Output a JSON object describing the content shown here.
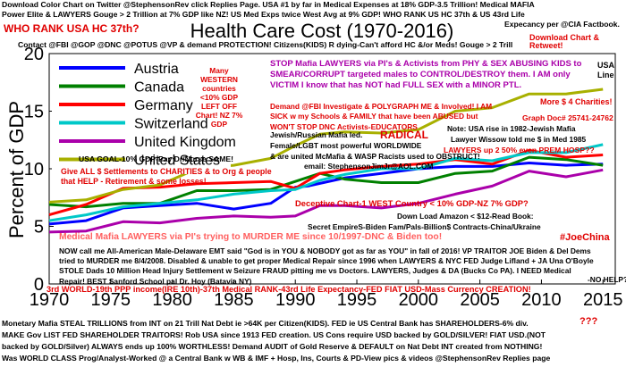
{
  "chart_data": {
    "type": "line",
    "title": "Health Care Cost (1970-2016)",
    "ylabel": "Percent of GDP",
    "xlabel": "",
    "xlim": [
      1970,
      2016
    ],
    "ylim": [
      0,
      20
    ],
    "xticks": [
      1970,
      1975,
      1980,
      1985,
      1990,
      1995,
      2000,
      2005,
      2010,
      2015
    ],
    "yticks": [
      0,
      5,
      10,
      15,
      20
    ],
    "legend_position": "top-left",
    "grid": false,
    "series": [
      {
        "name": "Austria",
        "color": "#0000ff",
        "x": [
          1970,
          1973,
          1976,
          1979,
          1982,
          1985,
          1988,
          1990,
          1991,
          1994,
          1997,
          2000,
          2003,
          2006,
          2009,
          2012,
          2015
        ],
        "y": [
          5.2,
          5.5,
          6.6,
          6.8,
          7.0,
          6.5,
          7.0,
          8.4,
          8.5,
          9.2,
          9.6,
          10.0,
          10.2,
          10.2,
          10.5,
          10.3,
          10.4
        ]
      },
      {
        "name": "Canada",
        "color": "#008000",
        "x": [
          1970,
          1973,
          1976,
          1979,
          1982,
          1985,
          1988,
          1990,
          1992,
          1994,
          1997,
          2000,
          2003,
          2006,
          2009,
          2012,
          2015
        ],
        "y": [
          6.9,
          6.7,
          7.0,
          7.0,
          8.1,
          8.1,
          8.2,
          8.9,
          9.6,
          9.1,
          8.8,
          8.8,
          9.6,
          9.8,
          11.0,
          10.8,
          10.3
        ]
      },
      {
        "name": "Germany",
        "color": "#ff0000",
        "x": [
          1970,
          1973,
          1976,
          1979,
          1982,
          1985,
          1988,
          1990,
          1992,
          1994,
          1997,
          2000,
          2003,
          2006,
          2009,
          2012,
          2015
        ],
        "y": [
          6.0,
          6.9,
          8.3,
          8.4,
          8.7,
          8.8,
          8.9,
          8.3,
          9.6,
          9.9,
          10.2,
          10.4,
          10.8,
          10.4,
          11.6,
          11.0,
          11.2
        ]
      },
      {
        "name": "Switzerland",
        "color": "#00c8c8",
        "x": [
          1970,
          1973,
          1976,
          1979,
          1982,
          1985,
          1988,
          1990,
          1992,
          1994,
          1997,
          2000,
          2003,
          2006,
          2009,
          2012,
          2015
        ],
        "y": [
          5.5,
          6.0,
          6.7,
          7.0,
          7.3,
          7.8,
          8.1,
          8.2,
          9.0,
          9.5,
          10.0,
          10.0,
          10.9,
          10.7,
          11.4,
          11.4,
          12.1
        ]
      },
      {
        "name": "United Kingdom",
        "color": "#aa00aa",
        "x": [
          1970,
          1973,
          1976,
          1979,
          1982,
          1985,
          1988,
          1990,
          1992,
          1994,
          1997,
          2000,
          2003,
          2006,
          2009,
          2012,
          2015
        ],
        "y": [
          4.5,
          4.6,
          5.4,
          5.3,
          5.7,
          5.9,
          5.8,
          5.9,
          6.8,
          6.8,
          6.6,
          7.0,
          7.8,
          8.5,
          9.8,
          9.3,
          9.9
        ]
      },
      {
        "name": "United States",
        "color": "#a8b000",
        "x": [
          1970,
          1973,
          1976,
          1979,
          1982,
          1985,
          1988,
          1990,
          1992,
          1994,
          1997,
          2000,
          2003,
          2006,
          2009,
          2012,
          2015
        ],
        "y": [
          7.1,
          7.3,
          8.2,
          8.6,
          10.0,
          10.3,
          10.9,
          12.0,
          13.0,
          13.2,
          13.1,
          13.4,
          15.0,
          15.3,
          16.5,
          16.5,
          16.9
        ]
      }
    ]
  },
  "annotations": {
    "header_line1": "Download Color Chart on Twitter @StephensonRev click Replies Page. USA #1 by far in Medical Expenses at 18% GDP-3.5 Trillion! Medical MAFIA",
    "header_line2": "Power Elite & LAWYERS Gouge > 2 Trillion at 7% GDP like NZ! US Med Exps twice West Avg at 9% GDP! WHO RANK US HC 37th & US 43rd Life",
    "who_rank": "WHO RANK USA HC 37th?",
    "life_expectancy": "Expecancy per @CIA Factbook.",
    "contact_line": "Contact @FBI @GOP @DNC @POTUS @VP & demand PROTECTION! Citizens(KIDS) R dying-Can't afford HC &/or Meds! Gouge > 2 Trill",
    "download_chart": "Download Chart & Retweet!",
    "many_western": "Many WESTERN countries <10% GDP LEFT OFF Chart! NZ 7% GDP",
    "stop_mafia": "STOP Mafia LAWYERS via PI's & Activists from PHY & SEX ABUSING KIDS to SMEAR/CORRUPT targeted males to CONTROL/DESTROY them. I AM only VICTIM I know that has NOT had FULL SEX with a MINOR PTL.",
    "usa_line": "USA Line",
    "demand_fbi": "Demand @FBI Investigate & POLYGRAPH ME & Involved! I AM SICK w my Schools & FAMILY that have been ABUSED but WON'T STOP DNC Activists-EDUCATORS",
    "more_charities": "More $ 4 Charities!",
    "graph_doc": "Graph Doc# 25741-24762",
    "radical": "RADICAL",
    "jewish_russian": "Jewish/Russian Mafia led.",
    "note_rise": "Note: USA rise in 1982-Jewish Mafia",
    "lawyer_wissow": "Lawyer Wissow told me $ in Med 1985",
    "female_lgbt": "Female/LGBT most powerful WORLDWIDE",
    "lawyers_up": "LAWYERS up 2 50% even PREM HOSP??",
    "mcmafia": "& are united McMafia & WASP Racists used to OBSTRUCT!",
    "email": "email: StephensonJimJr@AOL.COM",
    "usa_goal": "USA GOAL-10% GDP-Pay Dr/Nurse SAME!",
    "give_all": "Give ALL $ Settlements to CHARITIES & to Org & people that HELP - Retirement & some losses!",
    "deceptive": "Deceptive Chart-1 WEST Country < 10% GDP-NZ 7% GDP?",
    "download_amazon": "Down Load Amazon < $12-Read Book:",
    "secret_empires": "Secret EmpireS-Biden Fam/Pals-Billion$ Contracts-China/Ukraine",
    "murder_me": "Medical Mafia LAWYERS via PI's trying to MURDER ME since 10/1997-DNC & Biden too!",
    "joechina": "#JoeChina",
    "now_call": "NOW call me All-American Male-Delaware EMT said \"God is in YOU & NOBODY got as far as YOU\" in fall of 2016! VP TRAITOR JOE Biden & Del Dems tried to MURDER me 8/4/2008. Disabled & unable to get proper Medical Repair since 1996 when LAWYERS & NYC FED Judge Lifland + JA Una O'Boyle STOLE Dads 10 Million Head Injury Settlement w Seizure FRAUD pitting me vs Doctors. LAWYERS, Judges & DA (Bucks Co PA). I NEED Medical Repair! BEST Sanford School pal Dr. Hoy (Batavia NY)",
    "no_help": "-NO HELP?",
    "third_world": "3rd WORLD-19th PPP income(IRE 10th)-37th Medical RANK-43rd Life Expectancy-FED FIAT USD-Mass Currency CREATION!",
    "footer_line1": "Monetary Mafia STEAL TRILLIONS from INT on 21 Trill Nat Debt ie >64K per Citizen(KIDS). FED ie US Central Bank has SHAREHOLDERS-6% div.",
    "qqq": "???",
    "footer_line2": "MAKE Gov LIST FED SHAREHOLDER TRAITORS! Rob USA since 1913 FED creation. US Cons require USD backed by GOLD/SILVER! FIAT USD.(NOT",
    "footer_line3": "backed by GOLD/Silver) ALWAYS ends up 100% WORTHLESS! Demand AUDIT of Gold Reserve & DEFAULT on Nat Debt INT created from NOTHING!",
    "footer_line4": "Was WORLD CLASS Prog/Analyst-Worked @ a Central Bank w WB & IMF + Hosp, Ins, Courts & PD-View pics & videos @StephensonRev Replies page"
  }
}
